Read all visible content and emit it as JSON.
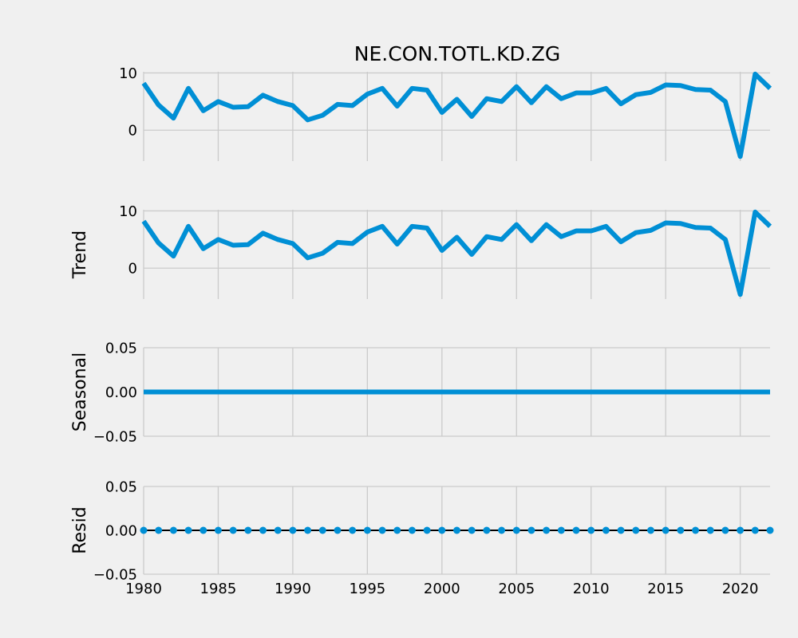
{
  "chart_data": {
    "type": "line",
    "title": "NE.CON.TOTL.KD.ZG",
    "x_ticks": [
      1980,
      1985,
      1990,
      1995,
      2000,
      2005,
      2010,
      2015,
      2020
    ],
    "xlim": [
      1980,
      2022
    ],
    "grid": true,
    "colors": {
      "line": "#008fd5",
      "background": "#f0f0f0",
      "grid": "#cbcbcb",
      "zero_line": "#000000"
    },
    "panels": [
      {
        "name": "observed",
        "ylabel": "",
        "y_ticks": [
          0,
          10
        ],
        "y_tick_labels": [
          "0",
          "10"
        ],
        "ylim": [
          -5.4,
          10.2
        ],
        "style": "line",
        "x": [
          1980,
          1981,
          1982,
          1983,
          1984,
          1985,
          1986,
          1987,
          1988,
          1989,
          1990,
          1991,
          1992,
          1993,
          1994,
          1995,
          1996,
          1997,
          1998,
          1999,
          2000,
          2001,
          2002,
          2003,
          2004,
          2005,
          2006,
          2007,
          2008,
          2009,
          2010,
          2011,
          2012,
          2013,
          2014,
          2015,
          2016,
          2017,
          2018,
          2019,
          2020,
          2021,
          2022
        ],
        "values": [
          8.2,
          4.4,
          2.1,
          7.3,
          3.4,
          5.0,
          4.0,
          4.1,
          6.1,
          5.0,
          4.3,
          1.8,
          2.6,
          4.5,
          4.3,
          6.3,
          7.3,
          4.2,
          7.3,
          7.0,
          3.1,
          5.4,
          2.4,
          5.5,
          5.0,
          7.6,
          4.8,
          7.6,
          5.5,
          6.5,
          6.5,
          7.3,
          4.6,
          6.2,
          6.6,
          7.9,
          7.8,
          7.1,
          7.0,
          5.0,
          -4.6,
          9.8,
          7.3
        ]
      },
      {
        "name": "trend",
        "ylabel": "Trend",
        "y_ticks": [
          0,
          10
        ],
        "y_tick_labels": [
          "0",
          "10"
        ],
        "ylim": [
          -5.4,
          10.2
        ],
        "style": "line",
        "x": [
          1980,
          1981,
          1982,
          1983,
          1984,
          1985,
          1986,
          1987,
          1988,
          1989,
          1990,
          1991,
          1992,
          1993,
          1994,
          1995,
          1996,
          1997,
          1998,
          1999,
          2000,
          2001,
          2002,
          2003,
          2004,
          2005,
          2006,
          2007,
          2008,
          2009,
          2010,
          2011,
          2012,
          2013,
          2014,
          2015,
          2016,
          2017,
          2018,
          2019,
          2020,
          2021,
          2022
        ],
        "values": [
          8.2,
          4.4,
          2.1,
          7.3,
          3.4,
          5.0,
          4.0,
          4.1,
          6.1,
          5.0,
          4.3,
          1.8,
          2.6,
          4.5,
          4.3,
          6.3,
          7.3,
          4.2,
          7.3,
          7.0,
          3.1,
          5.4,
          2.4,
          5.5,
          5.0,
          7.6,
          4.8,
          7.6,
          5.5,
          6.5,
          6.5,
          7.3,
          4.6,
          6.2,
          6.6,
          7.9,
          7.8,
          7.1,
          7.0,
          5.0,
          -4.6,
          9.8,
          7.3
        ]
      },
      {
        "name": "seasonal",
        "ylabel": "Seasonal",
        "y_ticks": [
          -0.05,
          0.0,
          0.05
        ],
        "y_tick_labels": [
          "−0.05",
          "0.00",
          "0.05"
        ],
        "ylim": [
          -0.05,
          0.05
        ],
        "style": "line",
        "x": [
          1980,
          2022
        ],
        "values": [
          0.0,
          0.0
        ]
      },
      {
        "name": "resid",
        "ylabel": "Resid",
        "y_ticks": [
          -0.05,
          0.0,
          0.05
        ],
        "y_tick_labels": [
          "−0.05",
          "0.00",
          "0.05"
        ],
        "ylim": [
          -0.05,
          0.05
        ],
        "style": "scatter",
        "zero_line": true,
        "x": [
          1980,
          1981,
          1982,
          1983,
          1984,
          1985,
          1986,
          1987,
          1988,
          1989,
          1990,
          1991,
          1992,
          1993,
          1994,
          1995,
          1996,
          1997,
          1998,
          1999,
          2000,
          2001,
          2002,
          2003,
          2004,
          2005,
          2006,
          2007,
          2008,
          2009,
          2010,
          2011,
          2012,
          2013,
          2014,
          2015,
          2016,
          2017,
          2018,
          2019,
          2020,
          2021,
          2022
        ],
        "values": [
          0.0,
          0.0,
          0.0,
          0.0,
          0.0,
          0.0,
          0.0,
          0.0,
          0.0,
          0.0,
          0.0,
          0.0,
          0.0,
          0.0,
          0.0,
          0.0,
          0.0,
          0.0,
          0.0,
          0.0,
          0.0,
          0.0,
          0.0,
          0.0,
          0.0,
          0.0,
          0.0,
          0.0,
          0.0,
          0.0,
          0.0,
          0.0,
          0.0,
          0.0,
          0.0,
          0.0,
          0.0,
          0.0,
          0.0,
          0.0,
          0.0,
          0.0,
          0.0
        ]
      }
    ]
  }
}
